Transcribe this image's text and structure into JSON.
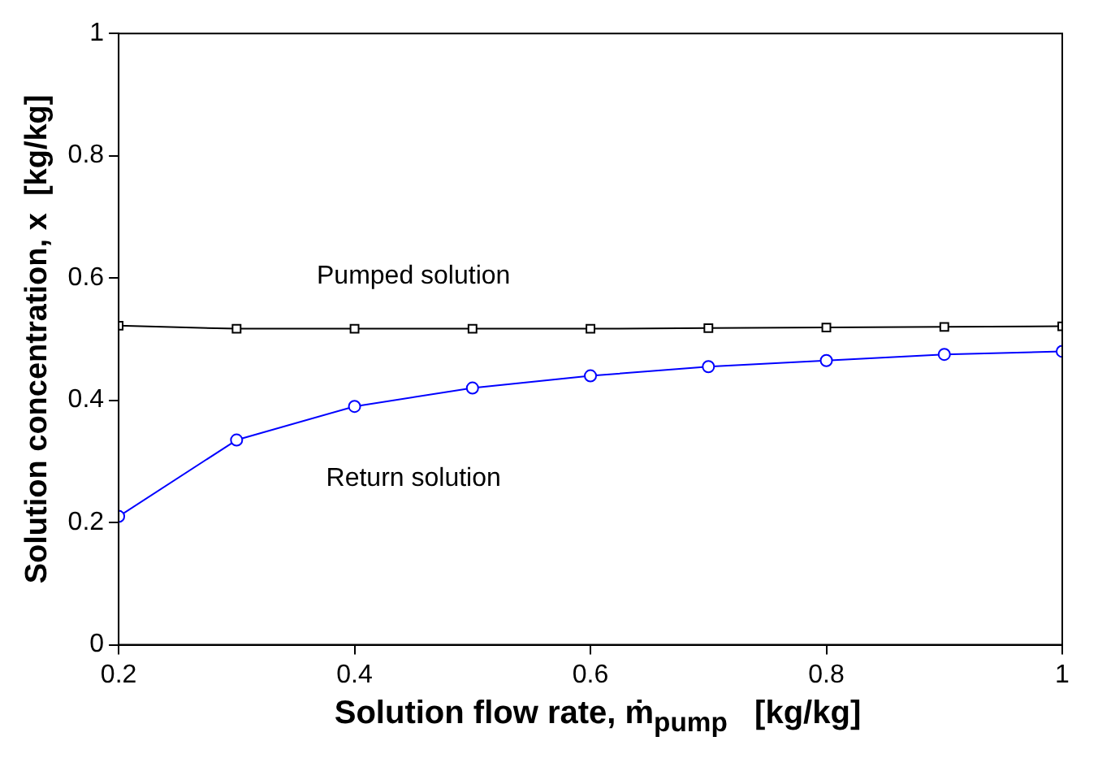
{
  "chart_data": {
    "type": "line",
    "xlabel": "Solution flow rate, ṁ$_{pump}$   [kg/kg]",
    "ylabel": "Solution concentration, x  [kg/kg]",
    "x": [
      0.2,
      0.3,
      0.4,
      0.5,
      0.6,
      0.7,
      0.8,
      0.9,
      1.0
    ],
    "series": [
      {
        "name": "Pumped solution",
        "color": "#000000",
        "marker": "square",
        "values": [
          0.522,
          0.517,
          0.517,
          0.517,
          0.517,
          0.518,
          0.519,
          0.52,
          0.521
        ]
      },
      {
        "name": "Return solution",
        "color": "#0000ff",
        "marker": "circle",
        "values": [
          0.21,
          0.335,
          0.39,
          0.42,
          0.44,
          0.455,
          0.465,
          0.475,
          0.48
        ]
      }
    ],
    "xlim": [
      0.2,
      1
    ],
    "xticks": [
      0.2,
      0.4,
      0.6,
      0.8,
      1
    ],
    "ylim": [
      0,
      1
    ],
    "yticks": [
      0,
      0.2,
      0.4,
      0.6,
      0.8,
      1
    ],
    "grid": false,
    "legend": false,
    "line_style": "solid"
  }
}
